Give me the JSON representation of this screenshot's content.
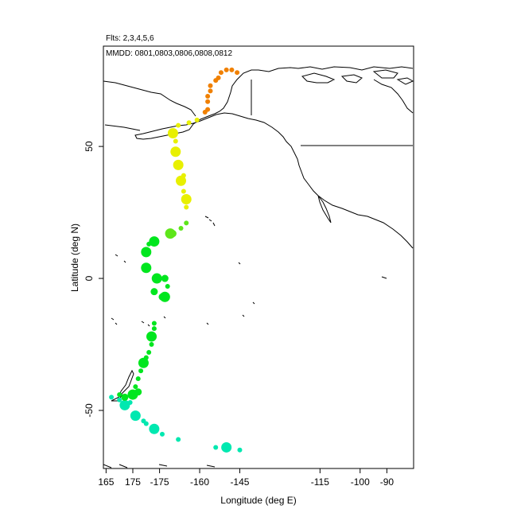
{
  "chart_data": {
    "type": "scatter",
    "title": "Flts: 2,3,4,5,6",
    "subtitle": "MMDD: 0801,0803,0806,0808,0812",
    "xlabel": "Longitude (deg E)",
    "ylabel": "Latitude (deg N)",
    "xlim": [
      164,
      280
    ],
    "ylim": [
      -72,
      88
    ],
    "xticks": [
      165,
      175,
      185,
      200,
      215,
      245,
      260,
      270
    ],
    "xtick_labels": [
      "165",
      "175",
      "-175",
      "-160",
      "-145",
      "-115",
      "-100",
      "-90"
    ],
    "yticks": [
      -50,
      0,
      50
    ],
    "ytick_labels": [
      "-50",
      "0",
      "50"
    ],
    "grid": false,
    "colors": {
      "cyan": "#00e8b0",
      "green": "#00e61e",
      "lightgreen": "#5ee61a",
      "yellow": "#e8f000",
      "orange": "#f08000"
    },
    "series": [
      {
        "color": "cyan",
        "points": [
          [
            167,
            -45,
            2
          ],
          [
            170,
            -46,
            2
          ],
          [
            172,
            -48,
            4
          ],
          [
            174,
            -47,
            2
          ],
          [
            176,
            -52,
            4
          ],
          [
            179,
            -54,
            2
          ],
          [
            180,
            -55,
            2
          ],
          [
            183,
            -57,
            4
          ],
          [
            186,
            -59,
            2
          ],
          [
            192,
            -61,
            2
          ],
          [
            206,
            -64,
            2
          ],
          [
            210,
            -64,
            4
          ],
          [
            215,
            -65,
            2
          ]
        ]
      },
      {
        "color": "green",
        "points": [
          [
            170,
            -44,
            2
          ],
          [
            172,
            -45,
            3
          ],
          [
            175,
            -44,
            4
          ],
          [
            177,
            -43,
            3
          ],
          [
            176,
            -41,
            2
          ],
          [
            177,
            -38,
            2
          ],
          [
            178,
            -35,
            2
          ],
          [
            179,
            -32,
            4
          ],
          [
            180,
            -30,
            2
          ],
          [
            181,
            -28,
            2
          ],
          [
            182,
            -22,
            4
          ],
          [
            183,
            -19,
            2
          ],
          [
            183,
            -17,
            2
          ],
          [
            182,
            -25,
            2
          ],
          [
            183,
            -5,
            3
          ],
          [
            180,
            4,
            4
          ],
          [
            180,
            9,
            2
          ],
          [
            180,
            10,
            4
          ],
          [
            181,
            13,
            2
          ],
          [
            183,
            14,
            4
          ],
          [
            184,
            0,
            4
          ],
          [
            187,
            0,
            3
          ],
          [
            188,
            -3,
            2
          ],
          [
            187,
            -7,
            4
          ],
          [
            186,
            -7,
            3
          ]
        ]
      },
      {
        "color": "lightgreen",
        "points": [
          [
            189,
            17,
            4
          ],
          [
            190,
            17,
            3
          ],
          [
            193,
            19,
            2
          ],
          [
            195,
            21,
            2
          ]
        ]
      },
      {
        "color": "yellow",
        "points": [
          [
            195,
            30,
            4
          ],
          [
            195,
            27,
            2
          ],
          [
            194,
            33,
            2
          ],
          [
            193,
            37,
            4
          ],
          [
            194,
            39,
            2
          ],
          [
            192,
            43,
            4
          ],
          [
            191,
            48,
            4
          ],
          [
            191,
            52,
            2
          ],
          [
            190,
            55,
            4
          ],
          [
            192,
            58,
            2
          ],
          [
            196,
            59,
            2
          ],
          [
            199,
            60,
            2
          ]
        ]
      },
      {
        "color": "orange",
        "points": [
          [
            202,
            63,
            2
          ],
          [
            203,
            64,
            2
          ],
          [
            203,
            67,
            2
          ],
          [
            203,
            69,
            2
          ],
          [
            204,
            71,
            2
          ],
          [
            204,
            73,
            2
          ],
          [
            206,
            75,
            2
          ],
          [
            207,
            76,
            2
          ],
          [
            208,
            78,
            2
          ],
          [
            210,
            79,
            2
          ],
          [
            212,
            79,
            2
          ],
          [
            214,
            78,
            2
          ]
        ]
      }
    ]
  }
}
